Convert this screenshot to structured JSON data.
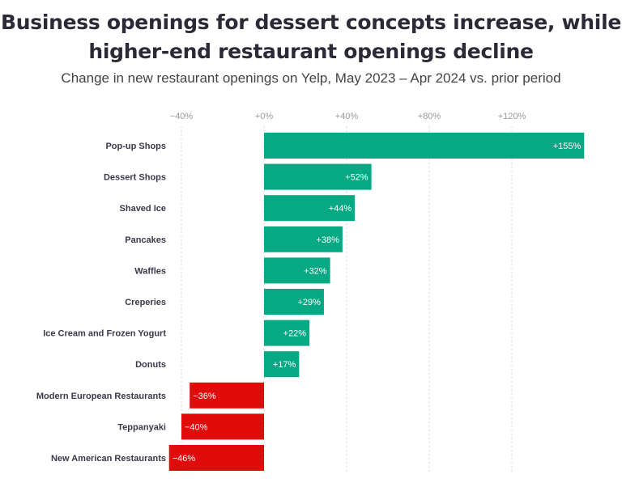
{
  "chart_data": {
    "type": "bar",
    "orientation": "horizontal",
    "title": "Business openings for dessert concepts increase, while higher-end restaurant openings decline",
    "title_lines": [
      "Business openings for dessert concepts increase, while",
      "higher-end restaurant openings decline"
    ],
    "subtitle": "Change in new restaurant openings on Yelp, May 2023 – Apr 2024 vs. prior period",
    "xlabel": "",
    "ylabel": "",
    "xlim": [
      -46,
      155
    ],
    "x_ticks": [
      -40,
      0,
      40,
      80,
      120
    ],
    "x_tick_labels": [
      "−40%",
      "+0%",
      "+40%",
      "+80%",
      "+120%"
    ],
    "grid": "vertical dotted",
    "categories": [
      "Pop-up Shops",
      "Dessert Shops",
      "Shaved Ice",
      "Pancakes",
      "Waffles",
      "Creperies",
      "Ice Cream and Frozen Yogurt",
      "Donuts",
      "Modern European Restaurants",
      "Teppanyaki",
      "New American Restaurants"
    ],
    "values": [
      155,
      52,
      44,
      38,
      32,
      29,
      22,
      17,
      -36,
      -40,
      -46
    ],
    "data_labels": [
      "+155%",
      "+52%",
      "+44%",
      "+38%",
      "+32%",
      "+29%",
      "+22%",
      "+17%",
      "−36%",
      "−40%",
      "−46%"
    ],
    "colors": {
      "positive": "#07a884",
      "negative": "#e00b0b"
    }
  }
}
